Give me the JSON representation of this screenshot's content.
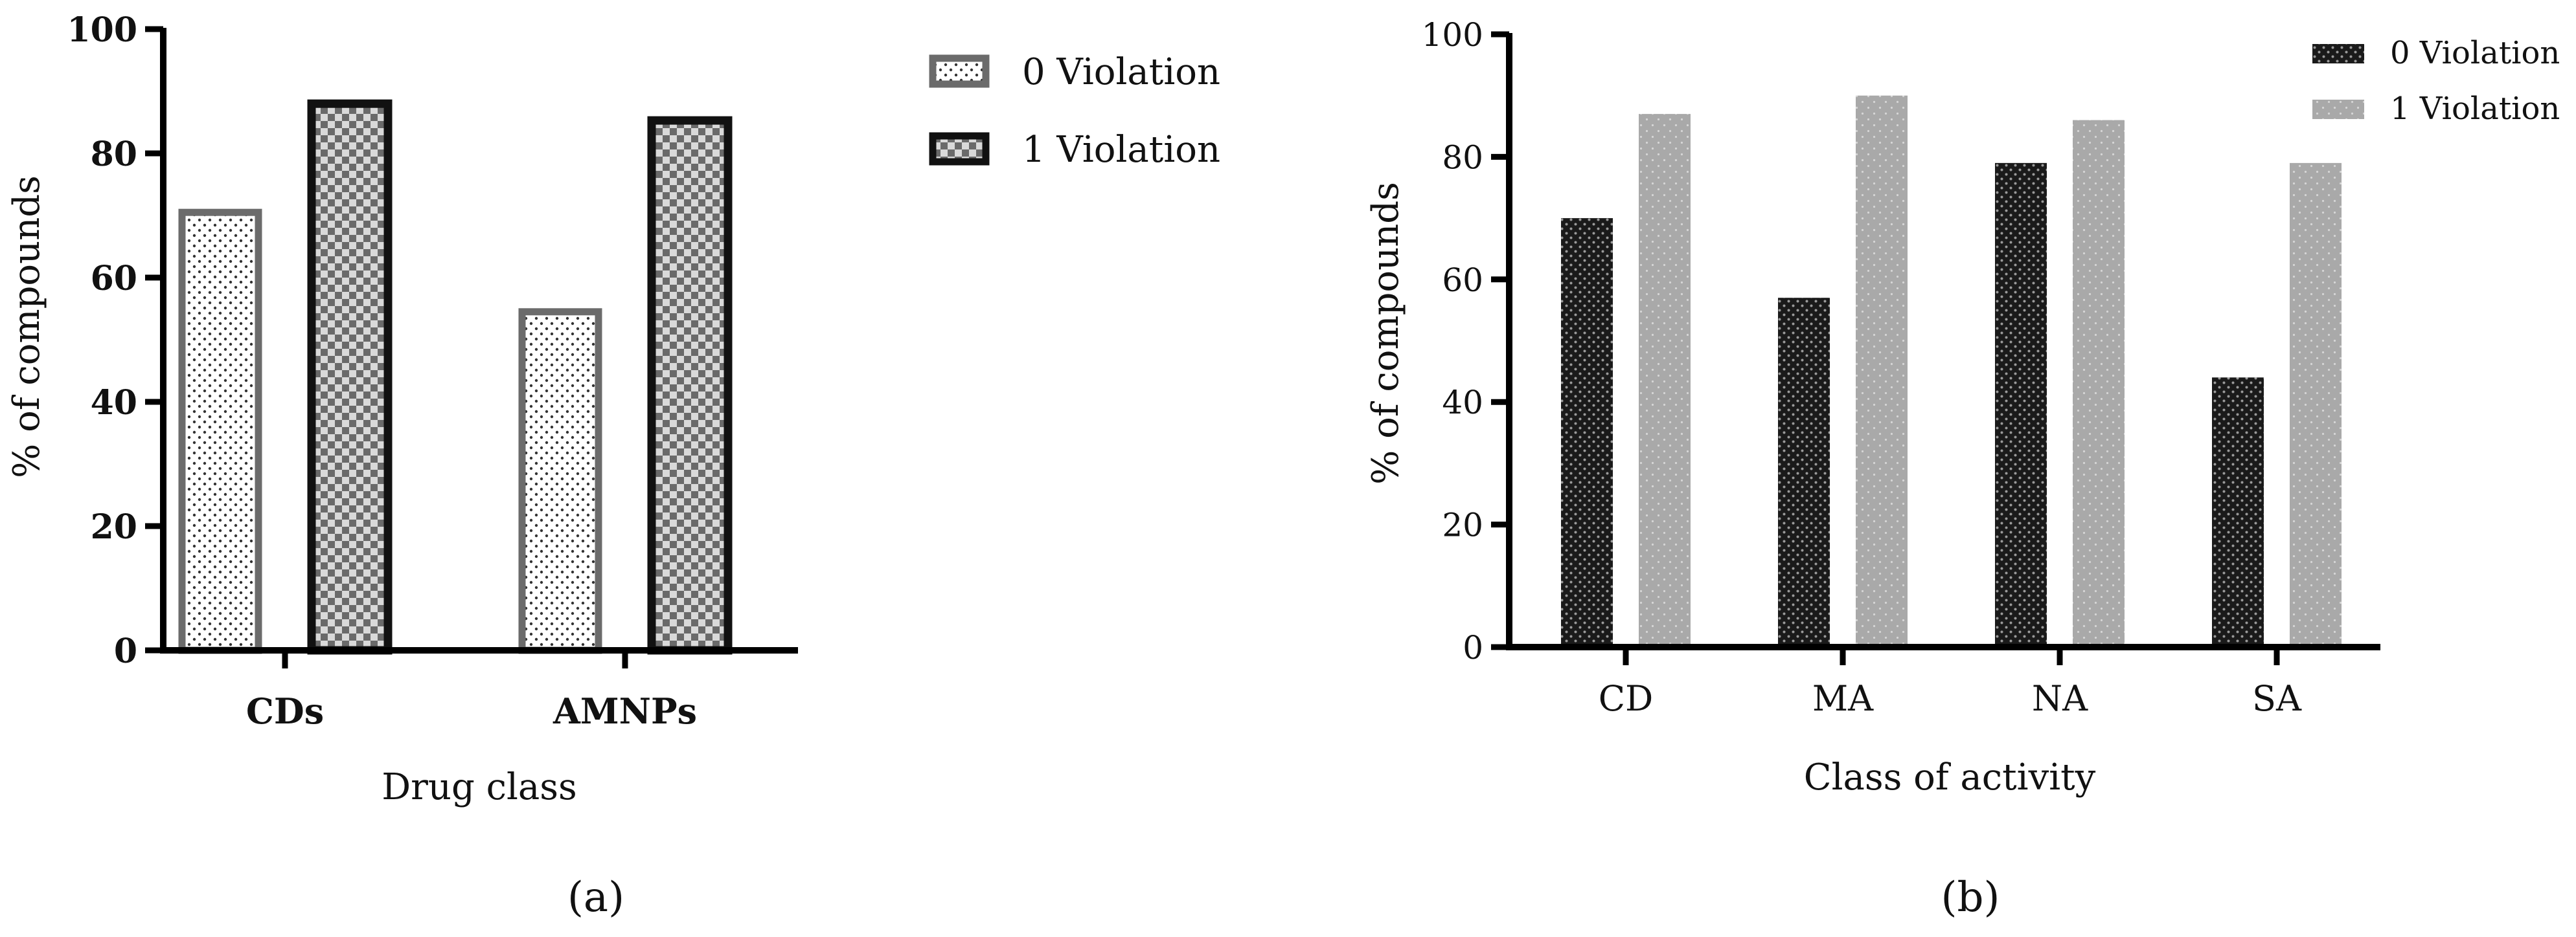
{
  "chart_data": [
    {
      "type": "bar",
      "panel_label": "(a)",
      "title": "",
      "xlabel": "Drug class",
      "ylabel": "% of compounds",
      "ylim": [
        0,
        100
      ],
      "yticks": [
        0,
        20,
        40,
        60,
        80,
        100
      ],
      "categories": [
        "CDs",
        "AMNPs"
      ],
      "series": [
        {
          "name": "0 Violation",
          "values": [
            70.5,
            54.5
          ],
          "color": "#6b6b6b",
          "pattern": "dots-light"
        },
        {
          "name": "1 Violation",
          "values": [
            88,
            85.3
          ],
          "color": "#111111",
          "pattern": "checker"
        }
      ],
      "legend": "top-right outside"
    },
    {
      "type": "bar",
      "panel_label": "(b)",
      "title": "",
      "xlabel": "Class of activity",
      "ylabel": "% of compounds",
      "ylim": [
        0,
        100
      ],
      "yticks": [
        0,
        20,
        40,
        60,
        80,
        100
      ],
      "categories": [
        "CD",
        "MA",
        "NA",
        "SA"
      ],
      "series": [
        {
          "name": "0 Violation",
          "values": [
            70,
            57,
            79,
            44
          ],
          "color": "#151515",
          "pattern": "dark-weave"
        },
        {
          "name": "1 Violation",
          "values": [
            87,
            90,
            86,
            79
          ],
          "color": "#a6a6a6",
          "pattern": "gray-dots"
        }
      ],
      "legend": "top-right"
    }
  ]
}
